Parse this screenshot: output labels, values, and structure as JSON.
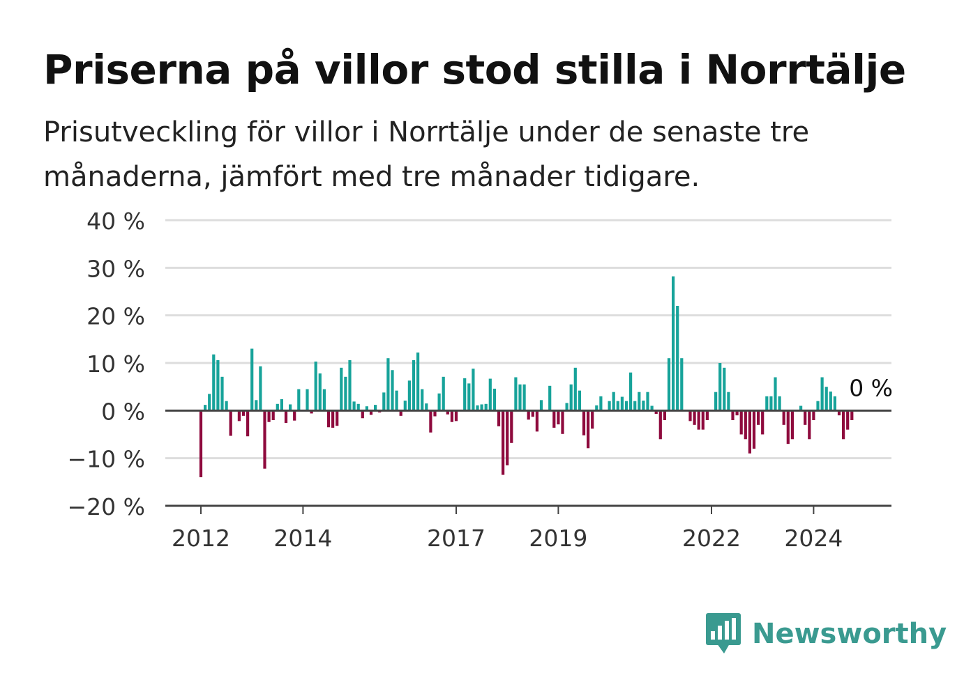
{
  "title": "Priserna på villor stod stilla i Norrtälje",
  "subtitle": "Prisutveckling för villor i Norrtälje under de senaste tre månaderna, jämfört med tre månader tidigare.",
  "brand": {
    "name": "Newsworthy",
    "color": "#3a9a90",
    "icon": "bar-chart-speech-bubble-icon"
  },
  "colors": {
    "positive": "#17a39a",
    "negative": "#8e0a3d",
    "grid": "#dddddd",
    "zero_line": "#444444",
    "axis_text": "#333333"
  },
  "chart_data": {
    "type": "bar",
    "title": "Priserna på villor stod stilla i Norrtälje",
    "subtitle": "Prisutveckling för villor i Norrtälje under de senaste tre månaderna, jämfört med tre månader tidigare.",
    "xlabel": "",
    "ylabel": "",
    "ylim": [
      -20,
      40
    ],
    "yticks": [
      -20,
      -10,
      0,
      10,
      20,
      30,
      40
    ],
    "ytick_labels": [
      "−20 %",
      "−10 %",
      "0 %",
      "10 %",
      "20 %",
      "30 %",
      "40 %"
    ],
    "grid": true,
    "x_start": "2012-01",
    "x_tick_labels": [
      {
        "label": "2012",
        "month": "2012-01"
      },
      {
        "label": "2014",
        "month": "2014-01"
      },
      {
        "label": "2017",
        "month": "2017-01"
      },
      {
        "label": "2019",
        "month": "2019-01"
      },
      {
        "label": "2022",
        "month": "2022-01"
      },
      {
        "label": "2024",
        "month": "2024-01"
      }
    ],
    "annotation": {
      "label": "0 %",
      "month": "2024-09",
      "value": 0
    },
    "values": [
      -14,
      1.2,
      3.5,
      11.8,
      10.6,
      7.1,
      2,
      -5.3,
      0,
      -2.2,
      -1.1,
      -5.4,
      13,
      2.2,
      9.3,
      -12.2,
      -2.4,
      -2,
      1.4,
      2.4,
      -2.6,
      1.3,
      -2.1,
      4.5,
      0,
      4.5,
      -0.6,
      10.3,
      7.8,
      4.5,
      -3.5,
      -3.6,
      -3.2,
      9,
      7.1,
      10.6,
      1.9,
      1.4,
      -1.6,
      0.9,
      -0.9,
      1.2,
      -0.4,
      3.8,
      11,
      8.5,
      4.2,
      -1.1,
      2.1,
      6.3,
      10.6,
      12.2,
      4.5,
      1.5,
      -4.6,
      -1.2,
      3.6,
      7.1,
      -0.8,
      -2.4,
      -2.2,
      0,
      6.8,
      5.7,
      8.8,
      1.1,
      1.3,
      1.4,
      6.7,
      4.6,
      -3.3,
      -13.5,
      -11.5,
      -6.8,
      7,
      5.5,
      5.5,
      -1.9,
      -1.3,
      -4.4,
      2.2,
      0,
      5.2,
      -3.6,
      -2.9,
      -4.9,
      1.6,
      5.5,
      9,
      4.2,
      -5.2,
      -7.9,
      -3.8,
      1.1,
      3,
      0,
      2,
      3.9,
      2,
      2.9,
      2,
      8,
      2,
      3.9,
      2.1,
      3.9,
      1,
      -0.7,
      -6,
      -2,
      11,
      28.2,
      22,
      11,
      0,
      -2.2,
      -3,
      -4,
      -4,
      -2,
      0,
      3.9,
      10,
      9,
      3.9,
      -2,
      -1,
      -5,
      -6,
      -9,
      -8,
      -3,
      -5,
      3,
      3,
      7,
      3,
      -3,
      -7,
      -6,
      0,
      1,
      -3,
      -6,
      -2,
      2,
      7,
      5,
      4,
      3,
      -1,
      -6,
      -4,
      -2,
      0
    ]
  }
}
